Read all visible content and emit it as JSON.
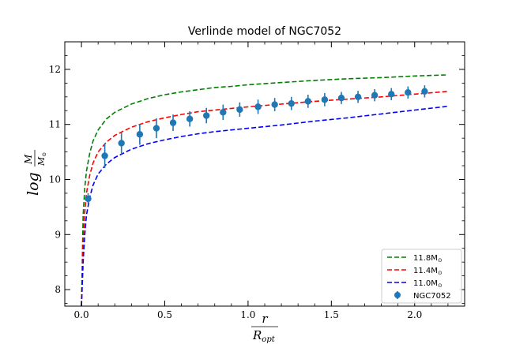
{
  "chart_data": {
    "type": "line",
    "title": "Verlinde model of NGC7052",
    "xlabel": {
      "numerator": "r",
      "denominator": "R",
      "denominator_sub": "opt"
    },
    "ylabel": {
      "prefix": "log",
      "numerator": "M",
      "denominator": "M",
      "denominator_sub": "⊙"
    },
    "xlim": [
      -0.1,
      2.3
    ],
    "ylim": [
      7.7,
      12.5
    ],
    "xticks": [
      0.0,
      0.5,
      1.0,
      1.5,
      2.0
    ],
    "xtick_labels": [
      "0.0",
      "0.5",
      "1.0",
      "1.5",
      "2.0"
    ],
    "yticks": [
      8,
      9,
      10,
      11,
      12
    ],
    "ytick_labels": [
      "8",
      "9",
      "10",
      "11",
      "12"
    ],
    "legend_position": "lower-right",
    "series": [
      {
        "name": "11.8M⊙",
        "label_text": "11.8M",
        "label_sub": "⊙",
        "style": "dashed",
        "color": "#008000",
        "x": [
          0.0,
          0.01,
          0.02,
          0.03,
          0.05,
          0.07,
          0.1,
          0.15,
          0.2,
          0.3,
          0.4,
          0.5,
          0.6,
          0.7,
          0.8,
          0.9,
          1.0,
          1.2,
          1.4,
          1.6,
          1.8,
          2.0,
          2.2
        ],
        "y": [
          7.7,
          9.35,
          9.85,
          10.15,
          10.48,
          10.7,
          10.9,
          11.1,
          11.22,
          11.37,
          11.47,
          11.54,
          11.59,
          11.63,
          11.67,
          11.69,
          11.72,
          11.76,
          11.8,
          11.83,
          11.85,
          11.88,
          11.9
        ]
      },
      {
        "name": "11.4M⊙",
        "label_text": "11.4M",
        "label_sub": "⊙",
        "style": "dashed",
        "color": "#ff0000",
        "x": [
          0.0,
          0.01,
          0.02,
          0.03,
          0.05,
          0.07,
          0.1,
          0.15,
          0.2,
          0.3,
          0.4,
          0.5,
          0.6,
          0.7,
          0.8,
          0.9,
          1.0,
          1.2,
          1.4,
          1.6,
          1.8,
          2.0,
          2.2
        ],
        "y": [
          7.7,
          8.9,
          9.4,
          9.75,
          10.08,
          10.3,
          10.5,
          10.68,
          10.8,
          10.95,
          11.05,
          11.12,
          11.18,
          11.23,
          11.26,
          11.29,
          11.32,
          11.37,
          11.42,
          11.46,
          11.5,
          11.55,
          11.6
        ]
      },
      {
        "name": "11.0M⊙",
        "label_text": "11.0M",
        "label_sub": "⊙",
        "style": "dashed",
        "color": "#0000ff",
        "x": [
          0.0,
          0.01,
          0.02,
          0.03,
          0.05,
          0.07,
          0.1,
          0.15,
          0.2,
          0.3,
          0.4,
          0.5,
          0.6,
          0.7,
          0.8,
          0.9,
          1.0,
          1.2,
          1.4,
          1.6,
          1.8,
          2.0,
          2.2
        ],
        "y": [
          7.7,
          8.5,
          9.0,
          9.35,
          9.68,
          9.9,
          10.1,
          10.28,
          10.4,
          10.55,
          10.65,
          10.72,
          10.78,
          10.83,
          10.87,
          10.9,
          10.93,
          10.99,
          11.06,
          11.12,
          11.19,
          11.26,
          11.33
        ]
      },
      {
        "name": "NGC7052",
        "label_text": "NGC7052",
        "label_sub": "",
        "style": "errorbar",
        "color": "#1f77b4",
        "x": [
          0.04,
          0.14,
          0.24,
          0.35,
          0.45,
          0.55,
          0.65,
          0.75,
          0.85,
          0.95,
          1.06,
          1.16,
          1.26,
          1.36,
          1.46,
          1.56,
          1.66,
          1.76,
          1.86,
          1.96,
          2.06
        ],
        "y": [
          9.65,
          10.43,
          10.66,
          10.82,
          10.93,
          11.03,
          11.1,
          11.16,
          11.22,
          11.27,
          11.32,
          11.36,
          11.38,
          11.42,
          11.45,
          11.48,
          11.5,
          11.53,
          11.55,
          11.58,
          11.6
        ],
        "yerr": [
          0.1,
          0.22,
          0.2,
          0.19,
          0.18,
          0.15,
          0.14,
          0.14,
          0.14,
          0.13,
          0.13,
          0.12,
          0.12,
          0.12,
          0.12,
          0.11,
          0.11,
          0.11,
          0.11,
          0.11,
          0.11
        ]
      }
    ]
  }
}
